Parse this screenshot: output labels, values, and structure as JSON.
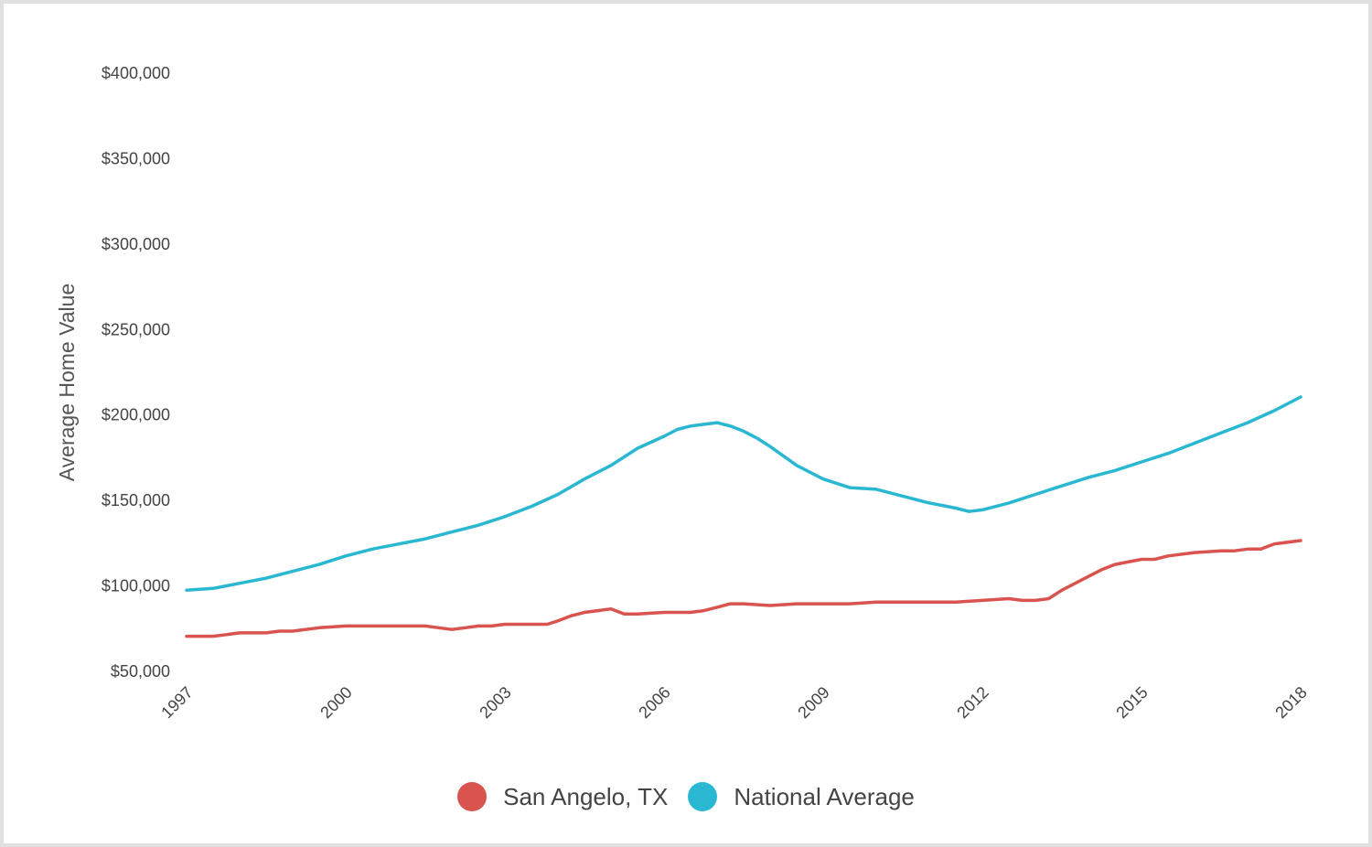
{
  "chart_data": {
    "type": "line",
    "ylabel": "Average Home Value",
    "xlabel": "",
    "ylim": [
      50000,
      400000
    ],
    "xlim": [
      1997,
      2018
    ],
    "y_ticks": [
      {
        "value": 50000,
        "label": "$50,000"
      },
      {
        "value": 100000,
        "label": "$100,000"
      },
      {
        "value": 150000,
        "label": "$150,000"
      },
      {
        "value": 200000,
        "label": "$200,000"
      },
      {
        "value": 250000,
        "label": "$250,000"
      },
      {
        "value": 300000,
        "label": "$300,000"
      },
      {
        "value": 350000,
        "label": "$350,000"
      },
      {
        "value": 400000,
        "label": "$400,000"
      }
    ],
    "x_ticks": [
      {
        "value": 1997,
        "label": "1997"
      },
      {
        "value": 2000,
        "label": "2000"
      },
      {
        "value": 2003,
        "label": "2003"
      },
      {
        "value": 2006,
        "label": "2006"
      },
      {
        "value": 2009,
        "label": "2009"
      },
      {
        "value": 2012,
        "label": "2012"
      },
      {
        "value": 2015,
        "label": "2015"
      },
      {
        "value": 2018,
        "label": "2018"
      }
    ],
    "grid": false,
    "legend_position": "bottom-center",
    "series": [
      {
        "name": "San Angelo, TX",
        "color": "#d9534f",
        "x": [
          1997,
          1997.5,
          1997.75,
          1998,
          1998.5,
          1998.75,
          1999,
          1999.5,
          2000,
          2000.5,
          2001,
          2001.5,
          2001.75,
          2002,
          2002.25,
          2002.5,
          2002.75,
          2003,
          2003.5,
          2003.8,
          2004,
          2004.25,
          2004.5,
          2004.75,
          2005,
          2005.25,
          2005.5,
          2006,
          2006.5,
          2006.75,
          2007,
          2007.25,
          2007.5,
          2008,
          2008.5,
          2009,
          2009.5,
          2010,
          2010.5,
          2011,
          2011.5,
          2012,
          2012.5,
          2012.75,
          2013,
          2013.25,
          2013.5,
          2014,
          2014.25,
          2014.5,
          2015,
          2015.25,
          2015.5,
          2016,
          2016.5,
          2016.75,
          2017,
          2017.25,
          2017.5,
          2018
        ],
        "values": [
          70000,
          70000,
          71000,
          72000,
          72000,
          73000,
          73000,
          75000,
          76000,
          76000,
          76000,
          76000,
          75000,
          74000,
          75000,
          76000,
          76000,
          77000,
          77000,
          77000,
          79000,
          82000,
          84000,
          85000,
          86000,
          83000,
          83000,
          84000,
          84000,
          85000,
          87000,
          89000,
          89000,
          88000,
          89000,
          89000,
          89000,
          90000,
          90000,
          90000,
          90000,
          91000,
          92000,
          91000,
          91000,
          92000,
          97000,
          105000,
          109000,
          112000,
          115000,
          115000,
          117000,
          119000,
          120000,
          120000,
          121000,
          121000,
          124000,
          126000
        ]
      },
      {
        "name": "National Average",
        "color": "#2ab7d1",
        "x": [
          1997,
          1997.5,
          1998,
          1998.5,
          1999,
          1999.5,
          2000,
          2000.5,
          2001,
          2001.5,
          2002,
          2002.5,
          2003,
          2003.5,
          2004,
          2004.5,
          2005,
          2005.5,
          2006,
          2006.25,
          2006.5,
          2006.75,
          2007,
          2007.25,
          2007.5,
          2007.75,
          2008,
          2008.5,
          2009,
          2009.5,
          2010,
          2010.5,
          2011,
          2011.5,
          2011.75,
          2012,
          2012.5,
          2013,
          2013.5,
          2014,
          2014.5,
          2015,
          2015.5,
          2016,
          2016.5,
          2017,
          2017.5,
          2018
        ],
        "values": [
          97000,
          98000,
          101000,
          104000,
          108000,
          112000,
          117000,
          121000,
          124000,
          127000,
          131000,
          135000,
          140000,
          146000,
          153000,
          162000,
          170000,
          180000,
          187000,
          191000,
          193000,
          194000,
          195000,
          193000,
          190000,
          186000,
          181000,
          170000,
          162000,
          157000,
          156000,
          152000,
          148000,
          145000,
          143000,
          144000,
          148000,
          153000,
          158000,
          163000,
          167000,
          172000,
          177000,
          183000,
          189000,
          195000,
          202000,
          210000
        ]
      }
    ]
  }
}
